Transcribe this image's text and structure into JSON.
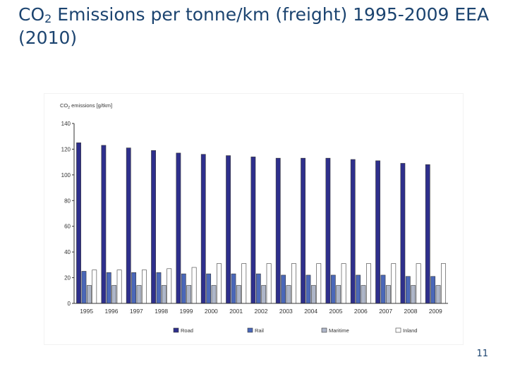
{
  "slide": {
    "title_prefix": "CO",
    "title_subscript": "2",
    "title_suffix": " Emissions per tonne/km (freight) 1995-2009 EEA (2010)",
    "page_number": "11"
  },
  "chart_data": {
    "type": "bar",
    "ylabel_prefix": "CO",
    "ylabel_subscript": "2",
    "ylabel_suffix": " emissions [g/tkm]",
    "ylim": [
      0,
      140
    ],
    "yticks": [
      0,
      20,
      40,
      60,
      80,
      100,
      120,
      140
    ],
    "grid": false,
    "legend_position": "bottom",
    "categories": [
      "1995",
      "1996",
      "1997",
      "1998",
      "1999",
      "2000",
      "2001",
      "2002",
      "2003",
      "2004",
      "2005",
      "2006",
      "2007",
      "2008",
      "2009"
    ],
    "series": [
      {
        "name": "Road",
        "color": "#2e2f8c",
        "values": [
          125,
          123,
          121,
          119,
          117,
          116,
          115,
          114,
          113,
          113,
          113,
          112,
          111,
          109,
          108
        ]
      },
      {
        "name": "Rail",
        "color": "#4a67b8",
        "values": [
          25,
          24,
          24,
          24,
          23,
          23,
          23,
          23,
          22,
          22,
          22,
          22,
          22,
          21,
          21
        ]
      },
      {
        "name": "Maritime",
        "color": "#aeb6c8",
        "values": [
          14,
          14,
          14,
          14,
          14,
          14,
          14,
          14,
          14,
          14,
          14,
          14,
          14,
          14,
          14
        ]
      },
      {
        "name": "Inland",
        "color": "#ffffff",
        "values": [
          26,
          26,
          26,
          27,
          28,
          31,
          31,
          31,
          31,
          31,
          31,
          31,
          31,
          31,
          31
        ]
      }
    ]
  }
}
